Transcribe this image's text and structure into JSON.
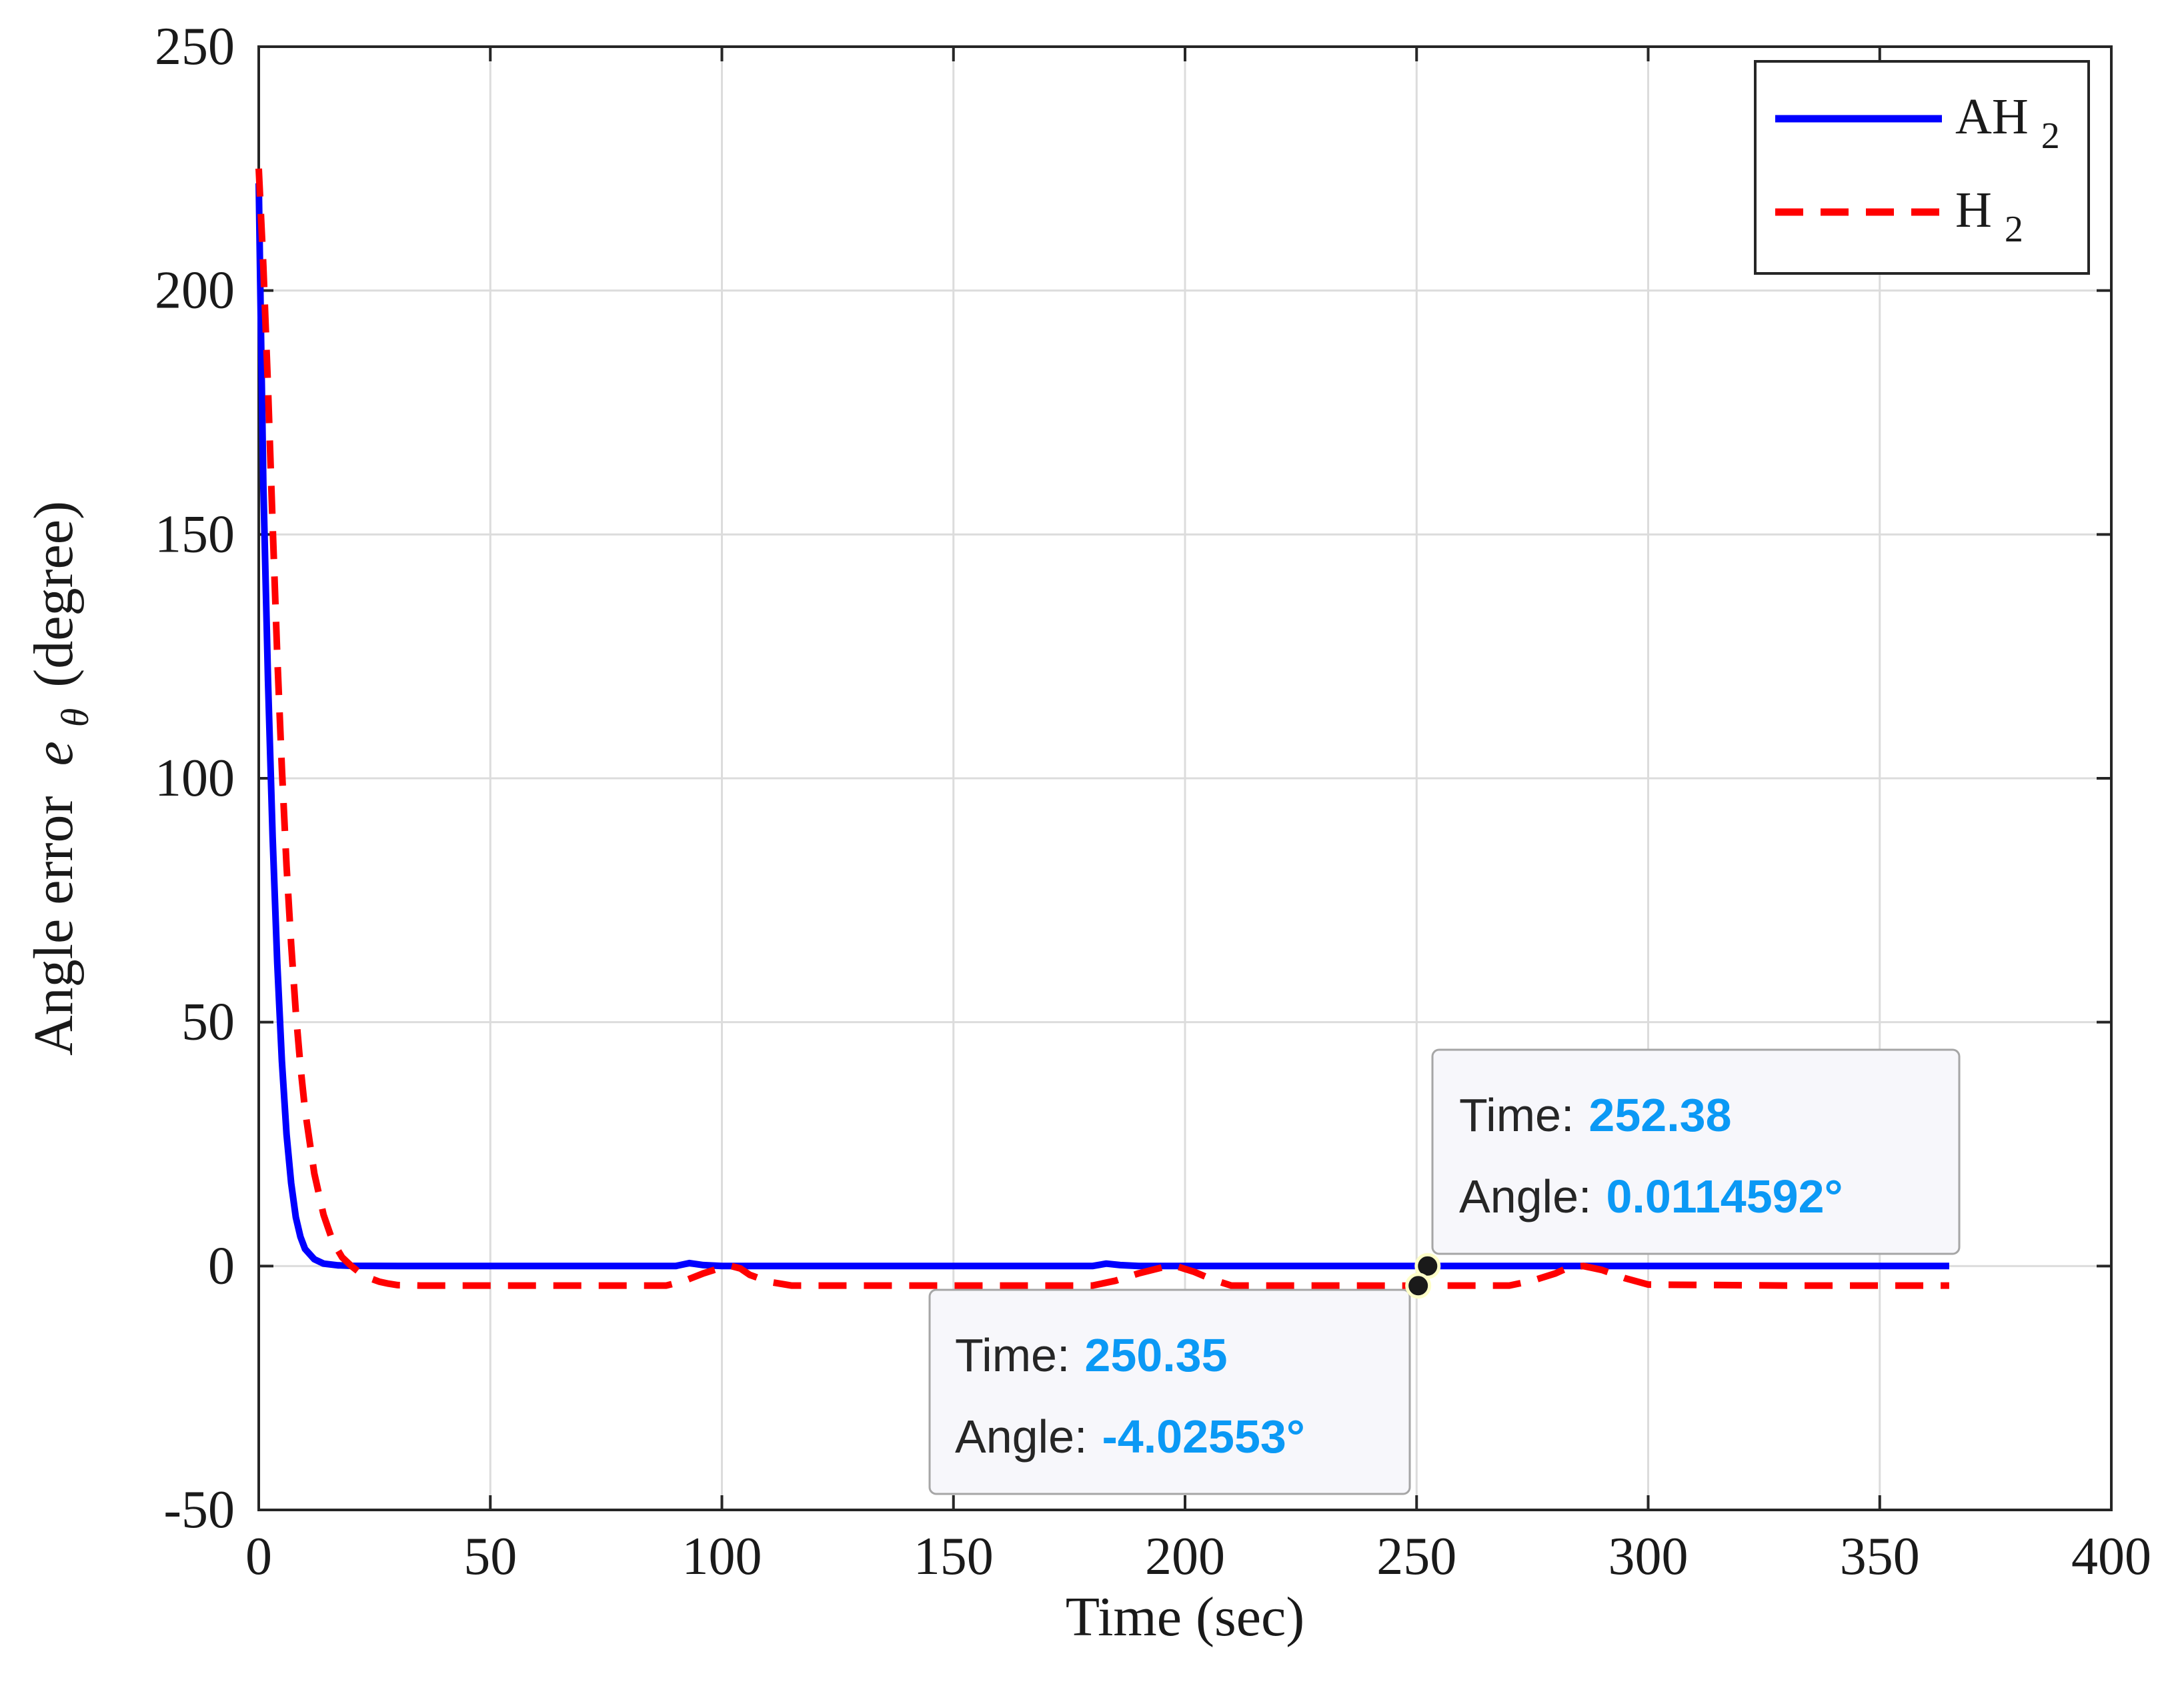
{
  "chart_data": {
    "type": "line",
    "xlabel": "Time (sec)",
    "ylabel_prefix": "Angle error",
    "ylabel_symbol": "e",
    "ylabel_subscript": "θ",
    "ylabel_suffix": "(degree)",
    "xlim": [
      0,
      400
    ],
    "ylim": [
      -50,
      250
    ],
    "xticks": [
      "0",
      "50",
      "100",
      "150",
      "200",
      "250",
      "300",
      "350",
      "400"
    ],
    "yticks": [
      "-50",
      "0",
      "50",
      "100",
      "150",
      "200",
      "250"
    ],
    "grid": true,
    "legend_position": "top-right",
    "series": [
      {
        "name": "AH2",
        "label_main": "AH",
        "label_sub": "2",
        "color": "#0000ff",
        "style": "solid",
        "x": [
          0,
          0.5,
          1,
          2,
          3,
          4,
          5,
          6,
          7,
          8,
          9,
          10,
          12,
          14,
          17,
          20,
          30,
          50,
          80,
          90,
          93,
          96,
          100,
          110,
          150,
          180,
          183,
          186,
          190,
          200,
          250,
          280,
          300,
          330,
          365
        ],
        "y": [
          222,
          190,
          160,
          120,
          88,
          62,
          42,
          27,
          17,
          10,
          6,
          3.5,
          1.4,
          0.5,
          0.15,
          0.05,
          0,
          0,
          0,
          0,
          0.6,
          0.2,
          0,
          0,
          0,
          0,
          0.5,
          0.2,
          0,
          0,
          0,
          0,
          0,
          0,
          0
        ]
      },
      {
        "name": "H2",
        "label_main": "H",
        "label_sub": "2",
        "color": "#ff0000",
        "style": "dashed",
        "x": [
          0,
          1,
          2,
          3,
          4,
          5,
          6,
          7,
          8,
          9,
          10,
          12,
          14,
          16,
          18,
          20,
          22,
          24,
          26,
          28,
          30,
          35,
          40,
          50,
          60,
          70,
          80,
          88,
          92,
          96,
          100,
          102,
          104,
          106,
          110,
          115,
          120,
          150,
          180,
          185,
          190,
          195,
          198,
          202,
          206,
          210,
          230,
          250,
          252.38,
          255,
          260,
          270,
          275,
          280,
          283,
          286,
          290,
          295,
          300,
          330,
          365
        ],
        "y": [
          225,
          205,
          180,
          152,
          125,
          102,
          82,
          66,
          52,
          41,
          32,
          19,
          10.5,
          5,
          1.8,
          0,
          -1.5,
          -2.5,
          -3.2,
          -3.6,
          -3.9,
          -4.0,
          -4.0,
          -4.0,
          -4.0,
          -4.0,
          -4.0,
          -4.0,
          -3.0,
          -1.5,
          -0.3,
          0,
          -0.5,
          -1.8,
          -3.2,
          -4.0,
          -4.0,
          -4.0,
          -4.0,
          -3.0,
          -1.5,
          -0.3,
          0,
          -1.2,
          -2.8,
          -4.0,
          -4.0,
          -4.02553,
          -4.0,
          -4.0,
          -4.0,
          -4.0,
          -3.0,
          -1.5,
          -0.2,
          0,
          -0.8,
          -2.5,
          -3.8,
          -4.0,
          -4.0
        ]
      }
    ],
    "annotations": [
      {
        "time_label": "Time:",
        "time_value": "252.38",
        "angle_label": "Angle:",
        "angle_value": "0.0114592°",
        "x": 252.38,
        "y": 0.0114592
      },
      {
        "time_label": "Time:",
        "time_value": "250.35",
        "angle_label": "Angle:",
        "angle_value": "-4.02553°",
        "x": 250.35,
        "y": -4.02553
      }
    ],
    "tooltip_value_color": "#0b99f5"
  }
}
